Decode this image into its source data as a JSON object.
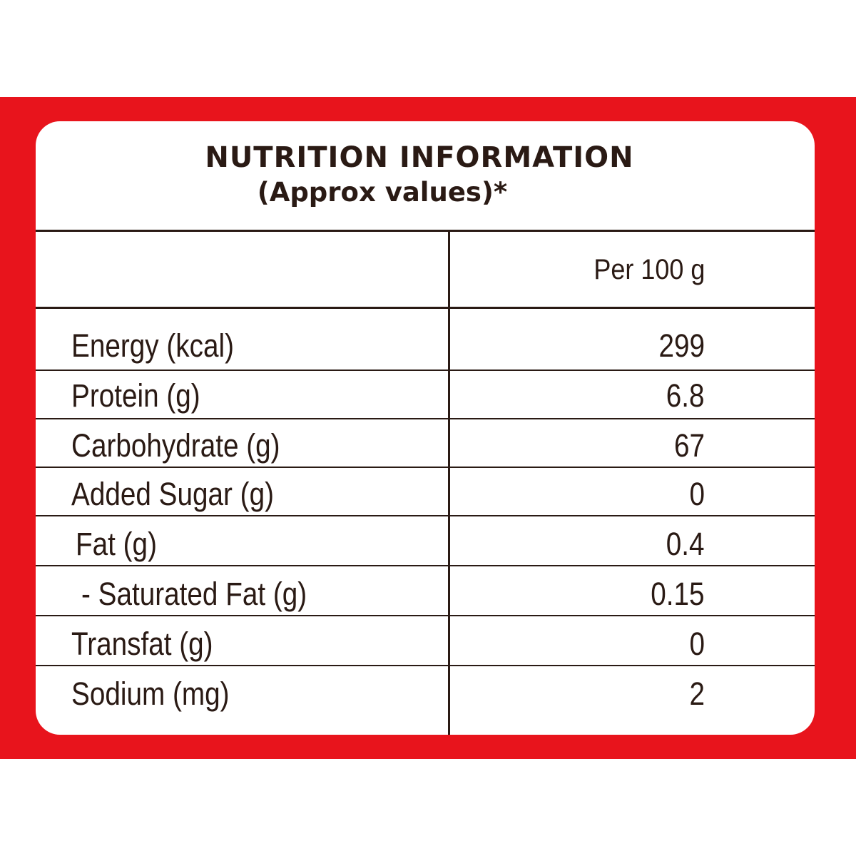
{
  "label": {
    "title": "NUTRITION INFORMATION",
    "subtitle": "(Approx values)*",
    "column_header": "Per 100 g",
    "rows": [
      {
        "name": "Energy (kcal)",
        "value": "299"
      },
      {
        "name": "Protein (g)",
        "value": "6.8"
      },
      {
        "name": "Carbohydrate (g)",
        "value": "67"
      },
      {
        "name": "Added Sugar (g)",
        "value": "0"
      },
      {
        "name": "Fat (g)",
        "value": "0.4"
      },
      {
        "name": "- Saturated Fat (g)",
        "value": "0.15"
      },
      {
        "name": "Transfat (g)",
        "value": "0"
      },
      {
        "name": "Sodium (mg)",
        "value": "2"
      }
    ]
  },
  "colors": {
    "background_band": "#e8141c",
    "card": "#ffffff",
    "ink": "#2a1a14"
  }
}
